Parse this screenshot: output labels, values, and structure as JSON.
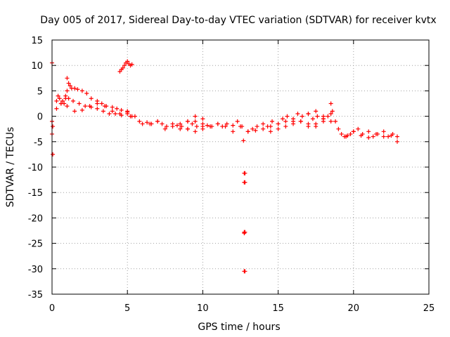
{
  "chart_data": {
    "type": "scatter",
    "title": "Day 005 of 2017, Sidereal Day-to-day VTEC variation (SDTVAR) for receiver kvtx",
    "xlabel": "GPS time / hours",
    "ylabel": "SDTVAR / TECUs",
    "xlim": [
      0,
      25
    ],
    "ylim": [
      -35,
      15
    ],
    "xticks": [
      0,
      5,
      10,
      15,
      20,
      25
    ],
    "yticks": [
      15,
      10,
      5,
      0,
      -5,
      -10,
      -15,
      -20,
      -25,
      -30,
      -35
    ],
    "grid": true,
    "marker": "+",
    "color": "#ff0000",
    "series": [
      {
        "name": "SDTVAR",
        "x": [
          0.0,
          0.0,
          0.0,
          0.05,
          0.05,
          0.3,
          0.4,
          0.5,
          0.6,
          0.7,
          0.8,
          0.9,
          1.0,
          1.0,
          1.1,
          1.2,
          1.3,
          1.5,
          1.7,
          2.0,
          2.3,
          2.6,
          3.0,
          3.3,
          3.6,
          4.0,
          4.3,
          4.6,
          5.0,
          5.3,
          0.9,
          1.1,
          1.4,
          1.8,
          2.2,
          2.6,
          3.0,
          3.4,
          3.8,
          4.2,
          4.6,
          5.0,
          5.2,
          0.3,
          0.6,
          1.0,
          1.5,
          2.0,
          2.5,
          3.0,
          3.5,
          4.0,
          4.5,
          5.0,
          4.5,
          4.6,
          4.7,
          4.8,
          4.9,
          5.0,
          5.1,
          5.2,
          5.3,
          5.5,
          5.8,
          6.0,
          6.3,
          6.6,
          7.0,
          7.3,
          7.6,
          8.0,
          8.3,
          8.6,
          9.0,
          9.3,
          9.6,
          10.0,
          10.3,
          10.6,
          11.0,
          11.3,
          11.6,
          12.0,
          12.3,
          12.6,
          6.5,
          7.0,
          7.5,
          8.0,
          8.5,
          9.0,
          9.5,
          10.0,
          10.5,
          11.0,
          11.5,
          12.0,
          12.5,
          8.5,
          9.0,
          9.5,
          10.0,
          9.0,
          9.5,
          10.0,
          12.7,
          12.8,
          12.8,
          12.8,
          12.8,
          13.0,
          13.3,
          13.6,
          14.0,
          14.3,
          14.6,
          15.0,
          15.3,
          15.6,
          16.0,
          16.3,
          16.6,
          17.0,
          17.3,
          17.6,
          18.0,
          18.3,
          18.5,
          13.0,
          13.5,
          14.0,
          14.5,
          15.0,
          15.5,
          16.0,
          16.5,
          17.0,
          17.5,
          18.0,
          14.5,
          15.0,
          15.5,
          16.0,
          16.5,
          17.0,
          17.5,
          18.0,
          18.5,
          17.0,
          17.5,
          18.0,
          18.5,
          18.6,
          18.8,
          19.0,
          19.2,
          19.4,
          19.6,
          19.8,
          20.0,
          20.3,
          20.6,
          21.0,
          21.3,
          21.6,
          22.0,
          22.3,
          22.6,
          22.9,
          19.5,
          20.0,
          20.5,
          21.0,
          21.5,
          22.0,
          22.5,
          22.9,
          12.75,
          12.75,
          12.75,
          12.75,
          12.75
        ],
        "y": [
          10.5,
          -1.0,
          -3.5,
          -7.5,
          -2.0,
          3.0,
          4.0,
          3.5,
          2.5,
          3.0,
          2.5,
          3.5,
          5.0,
          7.5,
          6.5,
          6.0,
          5.5,
          5.5,
          5.3,
          5.0,
          4.5,
          3.5,
          3.0,
          2.5,
          2.0,
          1.8,
          1.5,
          1.2,
          1.0,
          0.0,
          4.0,
          3.5,
          3.0,
          2.5,
          2.0,
          1.8,
          1.5,
          1.0,
          0.5,
          0.5,
          0.2,
          0.5,
          0.0,
          1.5,
          2.5,
          2.0,
          1.0,
          1.2,
          2.0,
          2.5,
          2.0,
          1.0,
          0.5,
          0.8,
          8.8,
          9.2,
          9.5,
          10.0,
          10.5,
          10.8,
          10.3,
          10.0,
          10.2,
          0.0,
          -1.0,
          -1.5,
          -1.2,
          -1.5,
          -1.0,
          -1.5,
          -2.0,
          -1.5,
          -1.8,
          -2.0,
          -1.0,
          -1.5,
          -2.0,
          -1.5,
          -1.8,
          -2.0,
          -1.5,
          -2.0,
          -1.5,
          -1.8,
          -1.0,
          -2.0,
          -1.5,
          -1.0,
          -2.5,
          -2.0,
          -1.5,
          -2.5,
          -1.0,
          -2.5,
          -2.0,
          -1.5,
          -2.0,
          -3.0,
          -2.0,
          -2.5,
          -1.0,
          0.0,
          -0.5,
          -2.5,
          -3.0,
          -2.0,
          -4.8,
          -11.2,
          -13.0,
          -22.8,
          -30.5,
          -3.0,
          -2.5,
          -2.0,
          -1.5,
          -2.0,
          -1.0,
          -1.5,
          -0.5,
          0.0,
          -1.0,
          0.5,
          0.0,
          0.5,
          -0.5,
          0.0,
          -0.5,
          0.0,
          -1.0,
          -3.0,
          -2.8,
          -2.5,
          -2.0,
          -1.5,
          -1.0,
          -0.5,
          -1.0,
          -2.0,
          -1.5,
          -0.5,
          -3.0,
          -2.5,
          -2.0,
          -1.5,
          -1.0,
          -1.5,
          -2.0,
          -1.0,
          0.5,
          0.5,
          1.0,
          0.0,
          2.5,
          1.0,
          -1.0,
          -2.5,
          -3.5,
          -4.0,
          -3.8,
          -3.5,
          -3.0,
          -2.5,
          -3.5,
          -3.0,
          -4.0,
          -3.5,
          -3.0,
          -4.0,
          -3.5,
          -5.0,
          -4.0,
          -3.0,
          -3.8,
          -4.2,
          -3.5,
          -4.0,
          -3.8,
          -4.0,
          -11.2,
          -13.0,
          -22.8,
          -23.0,
          -30.5
        ]
      }
    ]
  }
}
